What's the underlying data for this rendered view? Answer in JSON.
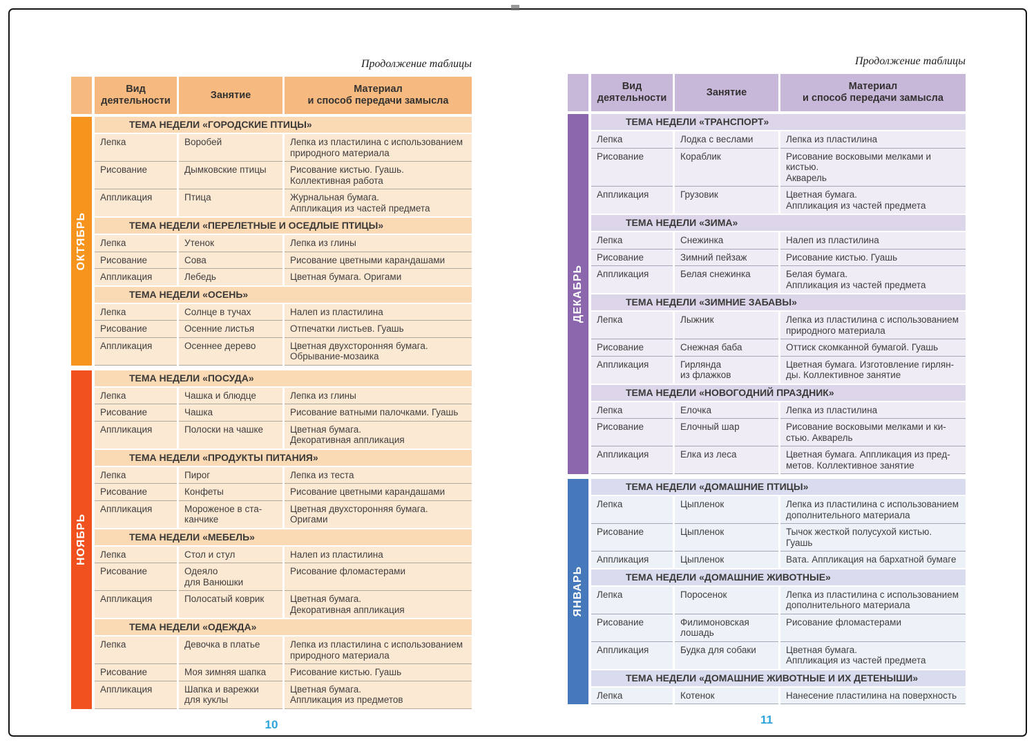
{
  "pages": [
    {
      "continuation_note": "Продолжение таблицы",
      "page_number": "10",
      "columns": [
        "Вид\nдеятельности",
        "Занятие",
        "Материал\nи способ передачи замысла"
      ],
      "colors": {
        "header": "#F6BA80",
        "line": "#b1a89e",
        "page_number": "#2BA4DE"
      },
      "months": [
        {
          "label": "ОКТЯБРЬ",
          "colors": {
            "bar": "#F7941E",
            "theme": "#FAD9B5",
            "row": "#FCE9D4"
          },
          "sections": [
            {
              "theme": "ТЕМА НЕДЕЛИ «ГОРОДСКИЕ ПТИЦЫ»",
              "rows": [
                {
                  "activity_type": "Лепка",
                  "activity": "Воробей",
                  "material": "Лепка из пластилина с использованием\nприродного материала"
                },
                {
                  "activity_type": "Рисование",
                  "activity": "Дымковские птицы",
                  "material": "Рисование кистью. Гуашь.\nКоллективная работа"
                },
                {
                  "activity_type": "Аппликация",
                  "activity": "Птица",
                  "material": "Журнальная бумага.\nАппликация из частей предмета"
                }
              ]
            },
            {
              "theme": "ТЕМА НЕДЕЛИ «ПЕРЕЛЕТНЫЕ И ОСЕДЛЫЕ ПТИЦЫ»",
              "rows": [
                {
                  "activity_type": "Лепка",
                  "activity": "Утенок",
                  "material": "Лепка из глины"
                },
                {
                  "activity_type": "Рисование",
                  "activity": "Сова",
                  "material": "Рисование цветными карандашами"
                },
                {
                  "activity_type": "Аппликация",
                  "activity": "Лебедь",
                  "material": "Цветная бумага. Оригами"
                }
              ]
            },
            {
              "theme": "ТЕМА НЕДЕЛИ «ОСЕНЬ»",
              "rows": [
                {
                  "activity_type": "Лепка",
                  "activity": "Солнце в тучах",
                  "material": "Налеп из пластилина"
                },
                {
                  "activity_type": "Рисование",
                  "activity": "Осенние листья",
                  "material": "Отпечатки листьев. Гуашь"
                },
                {
                  "activity_type": "Аппликация",
                  "activity": "Осеннее дерево",
                  "material": "Цветная двухсторонняя бумага.\nОбрывание-мозаика"
                }
              ]
            }
          ]
        },
        {
          "label": "НОЯБРЬ",
          "colors": {
            "bar": "#F0511F",
            "theme": "#FAD9B5",
            "row": "#FCE9D4"
          },
          "sections": [
            {
              "theme": "ТЕМА НЕДЕЛИ «ПОСУДА»",
              "rows": [
                {
                  "activity_type": "Лепка",
                  "activity": "Чашка и блюдце",
                  "material": "Лепка из глины"
                },
                {
                  "activity_type": "Рисование",
                  "activity": "Чашка",
                  "material": "Рисование ватными палочками. Гуашь"
                },
                {
                  "activity_type": "Аппликация",
                  "activity": "Полоски на чашке",
                  "material": "Цветная бумага.\nДекоративная аппликация"
                }
              ]
            },
            {
              "theme": "ТЕМА НЕДЕЛИ «ПРОДУКТЫ ПИТАНИЯ»",
              "rows": [
                {
                  "activity_type": "Лепка",
                  "activity": "Пирог",
                  "material": "Лепка из теста"
                },
                {
                  "activity_type": "Рисование",
                  "activity": "Конфеты",
                  "material": "Рисование цветными карандашами"
                },
                {
                  "activity_type": "Аппликация",
                  "activity": "Мороженое в ста-\nканчике",
                  "material": "Цветная двухсторонняя бумага.\nОригами"
                }
              ]
            },
            {
              "theme": "ТЕМА НЕДЕЛИ «МЕБЕЛЬ»",
              "rows": [
                {
                  "activity_type": "Лепка",
                  "activity": "Стол и стул",
                  "material": "Налеп из пластилина"
                },
                {
                  "activity_type": "Рисование",
                  "activity": "Одеяло\nдля Ванюшки",
                  "material": "Рисование фломастерами"
                },
                {
                  "activity_type": "Аппликация",
                  "activity": "Полосатый коврик",
                  "material": "Цветная бумага.\nДекоративная аппликация"
                }
              ]
            },
            {
              "theme": "ТЕМА НЕДЕЛИ «ОДЕЖДА»",
              "rows": [
                {
                  "activity_type": "Лепка",
                  "activity": "Девочка в платье",
                  "material": "Лепка из пластилина с использованием\nприродного материала"
                },
                {
                  "activity_type": "Рисование",
                  "activity": "Моя зимняя шапка",
                  "material": "Рисование кистью. Гуашь"
                },
                {
                  "activity_type": "Аппликация",
                  "activity": "Шапка и варежки\nдля куклы",
                  "material": "Цветная бумага.\nАппликация из предметов"
                }
              ]
            }
          ]
        }
      ]
    },
    {
      "continuation_note": "Продолжение таблицы",
      "page_number": "11",
      "columns": [
        "Вид\nдеятельности",
        "Занятие",
        "Материал\nи способ передачи замысла"
      ],
      "colors": {
        "header": "#C7B7D9",
        "line": "#a8a7b8",
        "page_number": "#2BA4DE"
      },
      "months": [
        {
          "label": "ДЕКАБРЬ",
          "colors": {
            "bar": "#8C67AE",
            "theme": "#DDD5EA",
            "row": "#EFECF5"
          },
          "sections": [
            {
              "theme": "ТЕМА НЕДЕЛИ «ТРАНСПОРТ»",
              "rows": [
                {
                  "activity_type": "Лепка",
                  "activity": "Лодка с веслами",
                  "material": "Лепка из пластилина"
                },
                {
                  "activity_type": "Рисование",
                  "activity": "Кораблик",
                  "material": "Рисование восковыми мелками и кистью.\nАкварель"
                },
                {
                  "activity_type": "Аппликация",
                  "activity": "Грузовик",
                  "material": "Цветная бумага.\nАппликация из частей предмета"
                }
              ]
            },
            {
              "theme": "ТЕМА НЕДЕЛИ «ЗИМА»",
              "rows": [
                {
                  "activity_type": "Лепка",
                  "activity": "Снежинка",
                  "material": "Налеп из пластилина"
                },
                {
                  "activity_type": "Рисование",
                  "activity": "Зимний пейзаж",
                  "material": "Рисование кистью. Гуашь"
                },
                {
                  "activity_type": "Аппликация",
                  "activity": "Белая снежинка",
                  "material": "Белая бумага.\nАппликация из частей предмета"
                }
              ]
            },
            {
              "theme": "ТЕМА НЕДЕЛИ «ЗИМНИЕ ЗАБАВЫ»",
              "rows": [
                {
                  "activity_type": "Лепка",
                  "activity": "Лыжник",
                  "material": "Лепка из пластилина с использованием\nприродного материала"
                },
                {
                  "activity_type": "Рисование",
                  "activity": "Снежная баба",
                  "material": "Оттиск скомканной бумагой. Гуашь"
                },
                {
                  "activity_type": "Аппликация",
                  "activity": "Гирлянда\nиз флажков",
                  "material": "Цветная бумага. Изготовление гирлян-\nды. Коллективное занятие"
                }
              ]
            },
            {
              "theme": "ТЕМА НЕДЕЛИ «НОВОГОДНИЙ ПРАЗДНИК»",
              "rows": [
                {
                  "activity_type": "Лепка",
                  "activity": "Елочка",
                  "material": "Лепка из пластилина"
                },
                {
                  "activity_type": "Рисование",
                  "activity": "Елочный шар",
                  "material": "Рисование восковыми мелками и ки-\nстью. Акварель"
                },
                {
                  "activity_type": "Аппликация",
                  "activity": "Елка из леса",
                  "material": "Цветная бумага. Аппликация из пред-\nметов. Коллективное занятие"
                }
              ]
            }
          ]
        },
        {
          "label": "ЯНВАРЬ",
          "colors": {
            "bar": "#4679BB",
            "theme": "#D9DCEF",
            "row": "#EDF1F8"
          },
          "sections": [
            {
              "theme": "ТЕМА НЕДЕЛИ «ДОМАШНИЕ ПТИЦЫ»",
              "rows": [
                {
                  "activity_type": "Лепка",
                  "activity": "Цыпленок",
                  "material": "Лепка из пластилина с использованием\nдополнительного материала"
                },
                {
                  "activity_type": "Рисование",
                  "activity": "Цыпленок",
                  "material": "Тычок жесткой полусухой кистью. Гуашь"
                },
                {
                  "activity_type": "Аппликация",
                  "activity": "Цыпленок",
                  "material": "Вата. Аппликация на бархатной бумаге"
                }
              ]
            },
            {
              "theme": "ТЕМА НЕДЕЛИ «ДОМАШНИЕ ЖИВОТНЫЕ»",
              "rows": [
                {
                  "activity_type": "Лепка",
                  "activity": "Поросенок",
                  "material": "Лепка из пластилина с использованием\nдополнительного материала"
                },
                {
                  "activity_type": "Рисование",
                  "activity": "Филимоновская\nлошадь",
                  "material": "Рисование фломастерами"
                },
                {
                  "activity_type": "Аппликация",
                  "activity": "Будка для собаки",
                  "material": "Цветная бумага.\nАппликация из частей предмета"
                }
              ]
            },
            {
              "theme": "ТЕМА НЕДЕЛИ «ДОМАШНИЕ ЖИВОТНЫЕ И ИХ ДЕТЕНЫШИ»",
              "rows": [
                {
                  "activity_type": "Лепка",
                  "activity": "Котенок",
                  "material": "Нанесение пластилина на поверхность"
                }
              ]
            }
          ]
        }
      ]
    }
  ]
}
